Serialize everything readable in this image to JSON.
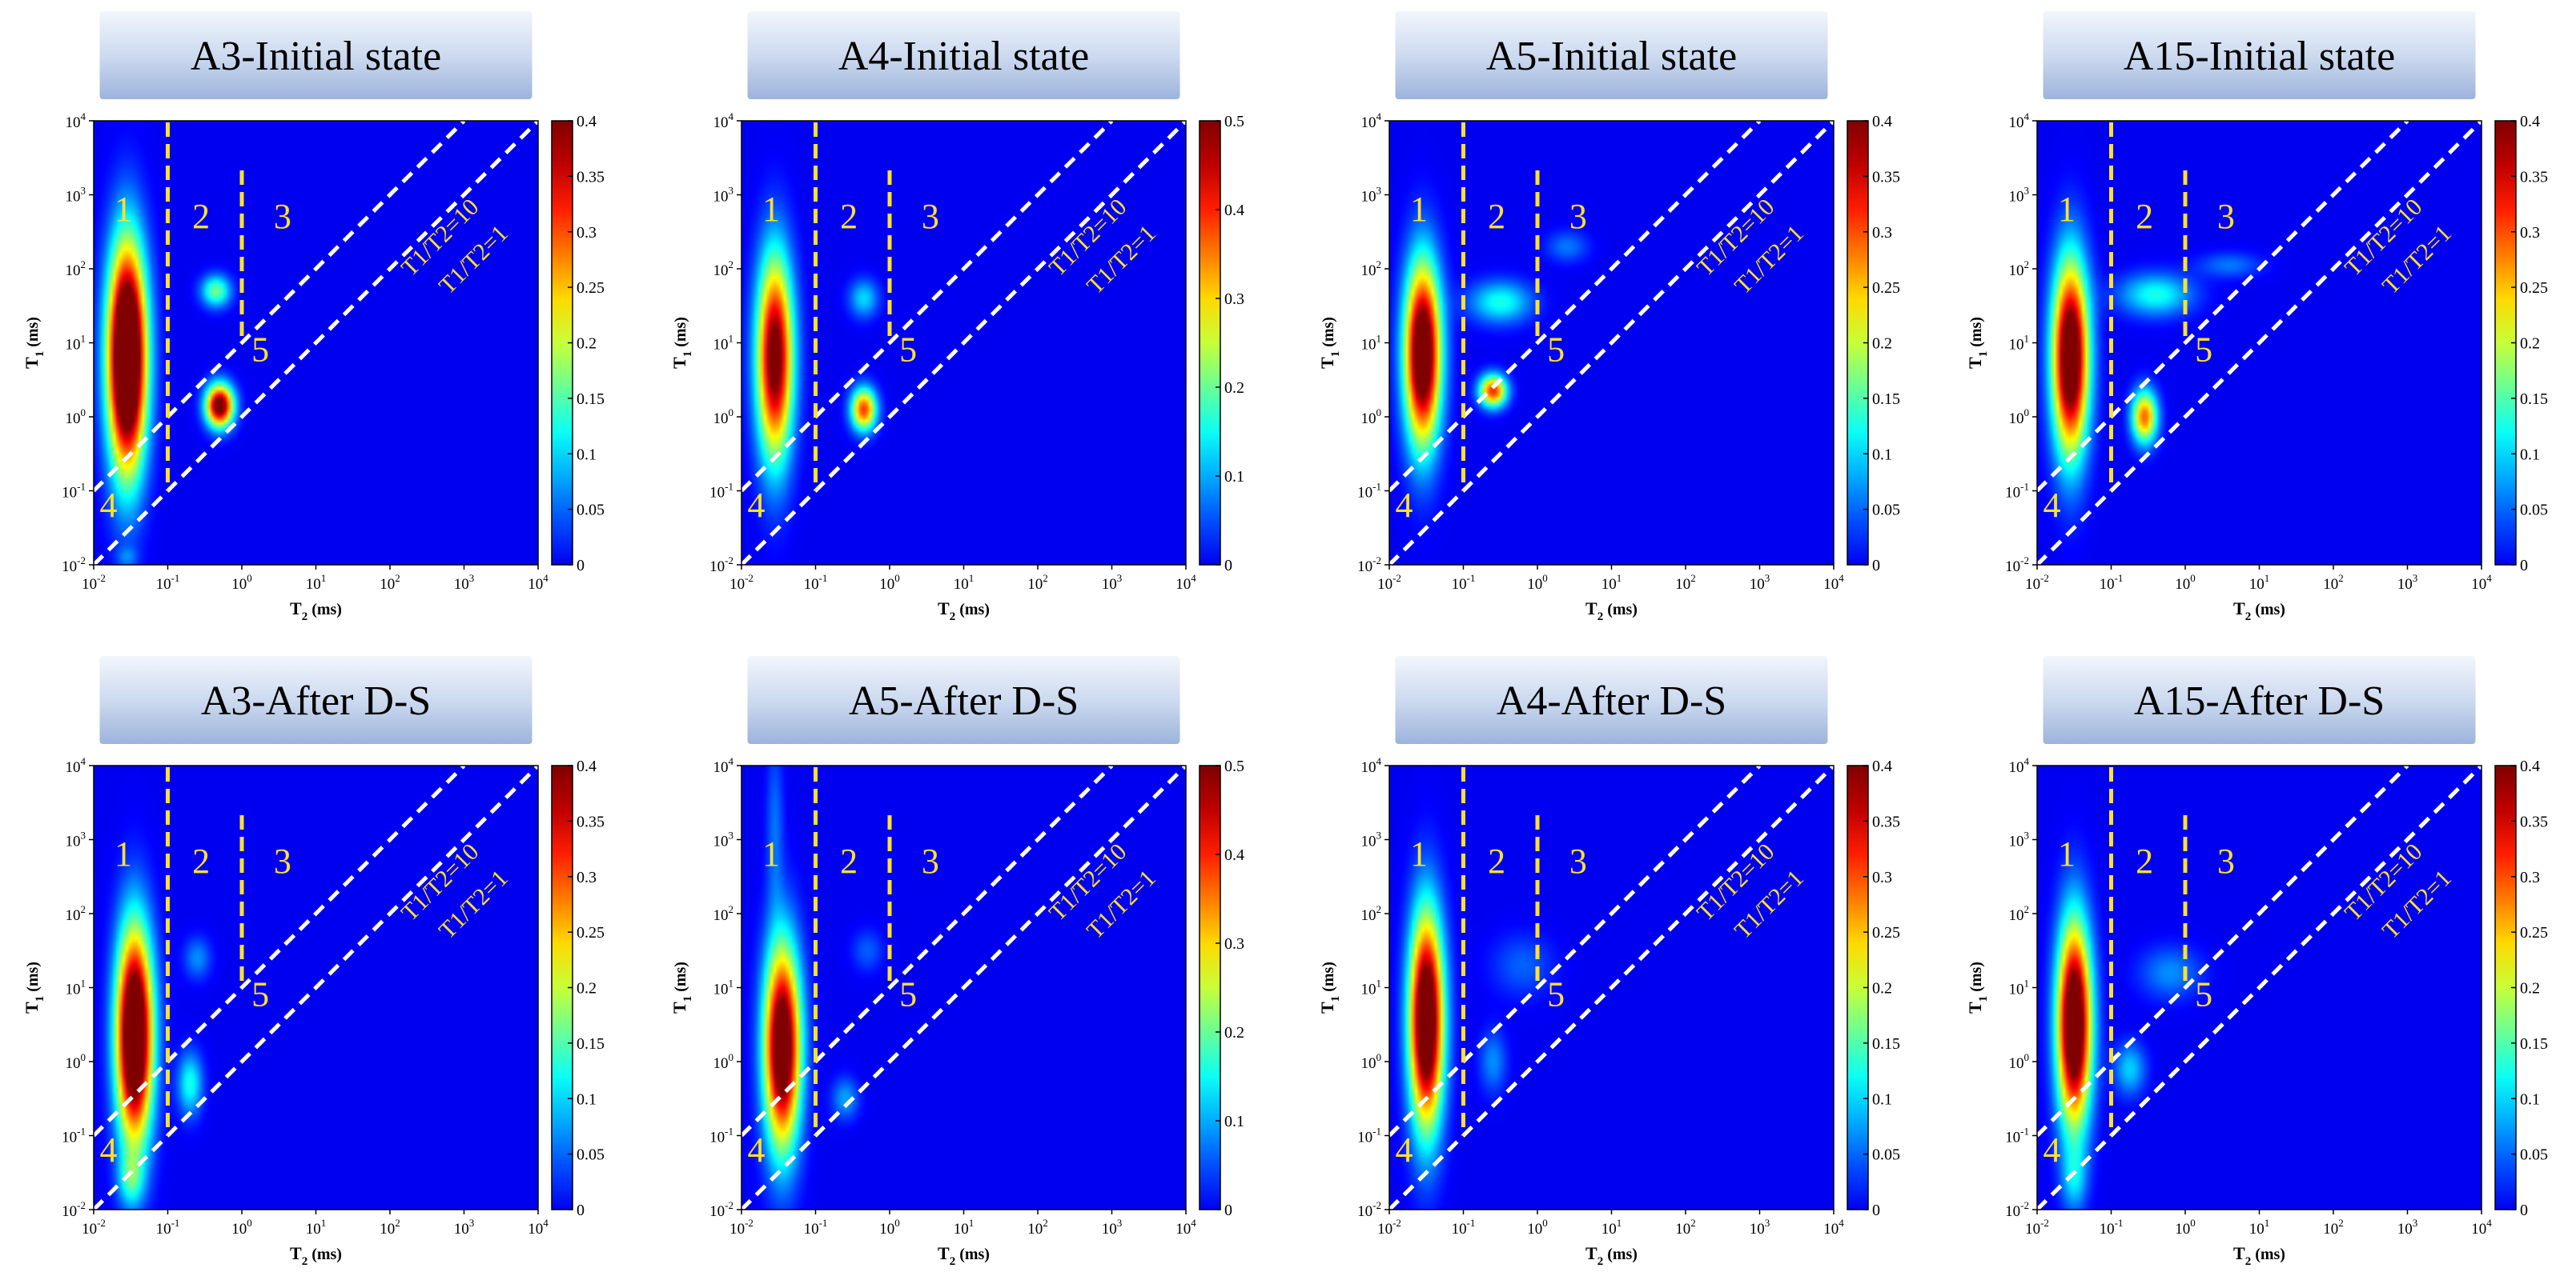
{
  "figure": {
    "panel_count": 8,
    "colormap": "jet"
  },
  "colors": {
    "background": "#ffffff",
    "plot_background": "#00008f",
    "yellow_annotation": "#ffe12b",
    "white_dashed_line": "#ffffff",
    "title_box_top": "#f2f6fc",
    "title_box_bottom": "#9cb3dc"
  },
  "chart_data": [
    {
      "type": "heatmap",
      "title": "A3-Initial state",
      "xlabel_main": "T",
      "xlabel_sub": "2",
      "xlabel_unit": " (ms)",
      "ylabel_main": "T",
      "ylabel_sub": "1",
      "ylabel_unit": " (ms)",
      "x_range_log10": [
        -2,
        4
      ],
      "y_range_log10": [
        -2,
        4
      ],
      "x_ticks": [
        "10-2",
        "10-1",
        "100",
        "101",
        "102",
        "103",
        "104"
      ],
      "y_ticks": [
        "10-2",
        "10-1",
        "100",
        "101",
        "102",
        "103",
        "104"
      ],
      "colorbar": {
        "max": 0.4,
        "ticks": [
          "0",
          "0.05",
          "0.1",
          "0.15",
          "0.2",
          "0.25",
          "0.3",
          "0.35",
          "0.4"
        ]
      },
      "vertical_dividers_log10T2": [
        -1,
        0
      ],
      "region_labels": [
        "1",
        "2",
        "3",
        "4",
        "5"
      ],
      "diagonal_labels": [
        "T1/T2=10",
        "T1/T2=1"
      ],
      "peaks": [
        {
          "log_t2": -1.55,
          "log_t1": 0.8,
          "sigma_t2": 0.18,
          "sigma_t1": 1.05,
          "amp": 0.62
        },
        {
          "log_t2": -0.3,
          "log_t1": 0.15,
          "sigma_t2": 0.13,
          "sigma_t1": 0.2,
          "amp": 0.45
        },
        {
          "log_t2": -0.35,
          "log_t1": 1.7,
          "sigma_t2": 0.14,
          "sigma_t1": 0.15,
          "amp": 0.17
        },
        {
          "log_t2": -1.55,
          "log_t1": -1.9,
          "sigma_t2": 0.1,
          "sigma_t1": 0.1,
          "amp": 0.05
        }
      ]
    },
    {
      "type": "heatmap",
      "title": "A4-Initial state",
      "xlabel_main": "T",
      "xlabel_sub": "2",
      "xlabel_unit": " (ms)",
      "ylabel_main": "T",
      "ylabel_sub": "1",
      "ylabel_unit": " (ms)",
      "x_range_log10": [
        -2,
        4
      ],
      "y_range_log10": [
        -2,
        4
      ],
      "x_ticks": [
        "10-2",
        "10-1",
        "100",
        "101",
        "102",
        "103",
        "104"
      ],
      "y_ticks": [
        "10-2",
        "10-1",
        "100",
        "101",
        "102",
        "103",
        "104"
      ],
      "colorbar": {
        "max": 0.5,
        "ticks": [
          "0",
          "0.1",
          "0.2",
          "0.3",
          "0.4",
          "0.5"
        ]
      },
      "vertical_dividers_log10T2": [
        -1,
        0
      ],
      "region_labels": [
        "1",
        "2",
        "3",
        "4",
        "5"
      ],
      "diagonal_labels": [
        "T1/T2=10",
        "T1/T2=1"
      ],
      "peaks": [
        {
          "log_t2": -1.55,
          "log_t1": 0.8,
          "sigma_t2": 0.17,
          "sigma_t1": 0.95,
          "amp": 0.55
        },
        {
          "log_t2": -0.35,
          "log_t1": 0.1,
          "sigma_t2": 0.12,
          "sigma_t1": 0.2,
          "amp": 0.4
        },
        {
          "log_t2": -0.35,
          "log_t1": 1.6,
          "sigma_t2": 0.14,
          "sigma_t1": 0.18,
          "amp": 0.13
        }
      ]
    },
    {
      "type": "heatmap",
      "title": "A5-Initial state",
      "xlabel_main": "T",
      "xlabel_sub": "2",
      "xlabel_unit": " (ms)",
      "ylabel_main": "T",
      "ylabel_sub": "1",
      "ylabel_unit": " (ms)",
      "x_range_log10": [
        -2,
        4
      ],
      "y_range_log10": [
        -2,
        4
      ],
      "x_ticks": [
        "10-2",
        "10-1",
        "100",
        "101",
        "102",
        "103",
        "104"
      ],
      "y_ticks": [
        "10-2",
        "10-1",
        "100",
        "101",
        "102",
        "103",
        "104"
      ],
      "colorbar": {
        "max": 0.4,
        "ticks": [
          "0",
          "0.05",
          "0.1",
          "0.15",
          "0.2",
          "0.25",
          "0.3",
          "0.35",
          "0.4"
        ]
      },
      "vertical_dividers_log10T2": [
        -1,
        0
      ],
      "region_labels": [
        "1",
        "2",
        "3",
        "4",
        "5"
      ],
      "diagonal_labels": [
        "T1/T2=10",
        "T1/T2=1"
      ],
      "peaks": [
        {
          "log_t2": -1.55,
          "log_t1": 0.85,
          "sigma_t2": 0.17,
          "sigma_t1": 0.85,
          "amp": 0.5
        },
        {
          "log_t2": -0.6,
          "log_t1": 0.35,
          "sigma_t2": 0.13,
          "sigma_t1": 0.15,
          "amp": 0.33
        },
        {
          "log_t2": -0.5,
          "log_t1": 1.55,
          "sigma_t2": 0.3,
          "sigma_t1": 0.2,
          "amp": 0.13
        },
        {
          "log_t2": 0.4,
          "log_t1": 2.3,
          "sigma_t2": 0.2,
          "sigma_t1": 0.15,
          "amp": 0.06
        }
      ]
    },
    {
      "type": "heatmap",
      "title": "A15-Initial state",
      "xlabel_main": "T",
      "xlabel_sub": "2",
      "xlabel_unit": " (ms)",
      "ylabel_main": "T",
      "ylabel_sub": "1",
      "ylabel_unit": " (ms)",
      "x_range_log10": [
        -2,
        4
      ],
      "y_range_log10": [
        -2,
        4
      ],
      "x_ticks": [
        "10-2",
        "10-1",
        "100",
        "101",
        "102",
        "103",
        "104"
      ],
      "y_ticks": [
        "10-2",
        "10-1",
        "100",
        "101",
        "102",
        "103",
        "104"
      ],
      "colorbar": {
        "max": 0.4,
        "ticks": [
          "0",
          "0.05",
          "0.1",
          "0.15",
          "0.2",
          "0.25",
          "0.3",
          "0.35",
          "0.4"
        ]
      },
      "vertical_dividers_log10T2": [
        -1,
        0
      ],
      "region_labels": [
        "1",
        "2",
        "3",
        "4",
        "5"
      ],
      "diagonal_labels": [
        "T1/T2=10",
        "T1/T2=1"
      ],
      "peaks": [
        {
          "log_t2": -1.55,
          "log_t1": 0.8,
          "sigma_t2": 0.17,
          "sigma_t1": 0.9,
          "amp": 0.5
        },
        {
          "log_t2": -0.55,
          "log_t1": 0.0,
          "sigma_t2": 0.12,
          "sigma_t1": 0.25,
          "amp": 0.3
        },
        {
          "log_t2": -0.4,
          "log_t1": 1.65,
          "sigma_t2": 0.35,
          "sigma_t1": 0.2,
          "amp": 0.13
        },
        {
          "log_t2": 0.6,
          "log_t1": 2.05,
          "sigma_t2": 0.3,
          "sigma_t1": 0.12,
          "amp": 0.06
        }
      ]
    },
    {
      "type": "heatmap",
      "title": "A3-After D-S",
      "xlabel_main": "T",
      "xlabel_sub": "2",
      "xlabel_unit": " (ms)",
      "ylabel_main": "T",
      "ylabel_sub": "1",
      "ylabel_unit": " (ms)",
      "x_range_log10": [
        -2,
        4
      ],
      "y_range_log10": [
        -2,
        4
      ],
      "x_ticks": [
        "10-2",
        "10-1",
        "100",
        "101",
        "102",
        "103",
        "104"
      ],
      "y_ticks": [
        "10-2",
        "10-1",
        "100",
        "101",
        "102",
        "103",
        "104"
      ],
      "colorbar": {
        "max": 0.4,
        "ticks": [
          "0",
          "0.05",
          "0.1",
          "0.15",
          "0.2",
          "0.25",
          "0.3",
          "0.35",
          "0.4"
        ]
      },
      "vertical_dividers_log10T2": [
        -1,
        0
      ],
      "region_labels": [
        "1",
        "2",
        "3",
        "4",
        "5"
      ],
      "diagonal_labels": [
        "T1/T2=10",
        "T1/T2=1"
      ],
      "peaks": [
        {
          "log_t2": -1.45,
          "log_t1": 0.35,
          "sigma_t2": 0.17,
          "sigma_t1": 1.0,
          "amp": 0.56
        },
        {
          "log_t2": -0.7,
          "log_t1": -0.3,
          "sigma_t2": 0.12,
          "sigma_t1": 0.3,
          "amp": 0.13
        },
        {
          "log_t2": -0.6,
          "log_t1": 1.4,
          "sigma_t2": 0.13,
          "sigma_t1": 0.2,
          "amp": 0.07
        },
        {
          "log_t2": -1.5,
          "log_t1": -1.6,
          "sigma_t2": 0.12,
          "sigma_t1": 0.25,
          "amp": 0.1
        }
      ]
    },
    {
      "type": "heatmap",
      "title": "A5-After D-S",
      "xlabel_main": "T",
      "xlabel_sub": "2",
      "xlabel_unit": " (ms)",
      "ylabel_main": "T",
      "ylabel_sub": "1",
      "ylabel_unit": " (ms)",
      "x_range_log10": [
        -2,
        4
      ],
      "y_range_log10": [
        -2,
        4
      ],
      "x_ticks": [
        "10-2",
        "10-1",
        "100",
        "101",
        "102",
        "103",
        "104"
      ],
      "y_ticks": [
        "10-2",
        "10-1",
        "100",
        "101",
        "102",
        "103",
        "104"
      ],
      "colorbar": {
        "max": 0.5,
        "ticks": [
          "0",
          "0.1",
          "0.2",
          "0.3",
          "0.4",
          "0.5"
        ]
      },
      "vertical_dividers_log10T2": [
        -1,
        0
      ],
      "region_labels": [
        "1",
        "2",
        "3",
        "4",
        "5"
      ],
      "diagonal_labels": [
        "T1/T2=10",
        "T1/T2=1"
      ],
      "peaks": [
        {
          "log_t2": -1.45,
          "log_t1": 0.2,
          "sigma_t2": 0.17,
          "sigma_t1": 0.95,
          "amp": 0.62
        },
        {
          "log_t2": -1.55,
          "log_t1": 3.2,
          "sigma_t2": 0.08,
          "sigma_t1": 0.8,
          "amp": 0.07
        },
        {
          "log_t2": -0.6,
          "log_t1": -0.5,
          "sigma_t2": 0.13,
          "sigma_t1": 0.2,
          "amp": 0.1
        },
        {
          "log_t2": -0.3,
          "log_t1": 1.5,
          "sigma_t2": 0.15,
          "sigma_t1": 0.2,
          "amp": 0.06
        }
      ]
    },
    {
      "type": "heatmap",
      "title": "A4-After D-S",
      "xlabel_main": "T",
      "xlabel_sub": "2",
      "xlabel_unit": " (ms)",
      "ylabel_main": "T",
      "ylabel_sub": "1",
      "ylabel_unit": " (ms)",
      "x_range_log10": [
        -2,
        4
      ],
      "y_range_log10": [
        -2,
        4
      ],
      "x_ticks": [
        "10-2",
        "10-1",
        "100",
        "101",
        "102",
        "103",
        "104"
      ],
      "y_ticks": [
        "10-2",
        "10-1",
        "100",
        "101",
        "102",
        "103",
        "104"
      ],
      "colorbar": {
        "max": 0.4,
        "ticks": [
          "0",
          "0.05",
          "0.1",
          "0.15",
          "0.2",
          "0.25",
          "0.3",
          "0.35",
          "0.4"
        ]
      },
      "vertical_dividers_log10T2": [
        -1,
        0
      ],
      "region_labels": [
        "1",
        "2",
        "3",
        "4",
        "5"
      ],
      "diagonal_labels": [
        "T1/T2=10",
        "T1/T2=1"
      ],
      "peaks": [
        {
          "log_t2": -1.5,
          "log_t1": 0.55,
          "sigma_t2": 0.16,
          "sigma_t1": 1.0,
          "amp": 0.52
        },
        {
          "log_t2": -0.6,
          "log_t1": 0.0,
          "sigma_t2": 0.13,
          "sigma_t1": 0.3,
          "amp": 0.07
        },
        {
          "log_t2": -0.2,
          "log_t1": 1.3,
          "sigma_t2": 0.3,
          "sigma_t1": 0.3,
          "amp": 0.05
        }
      ]
    },
    {
      "type": "heatmap",
      "title": "A15-After D-S",
      "xlabel_main": "T",
      "xlabel_sub": "2",
      "xlabel_unit": " (ms)",
      "ylabel_main": "T",
      "ylabel_sub": "1",
      "ylabel_unit": " (ms)",
      "x_range_log10": [
        -2,
        4
      ],
      "y_range_log10": [
        -2,
        4
      ],
      "x_ticks": [
        "10-2",
        "10-1",
        "100",
        "101",
        "102",
        "103",
        "104"
      ],
      "y_ticks": [
        "10-2",
        "10-1",
        "100",
        "101",
        "102",
        "103",
        "104"
      ],
      "colorbar": {
        "max": 0.4,
        "ticks": [
          "0",
          "0.05",
          "0.1",
          "0.15",
          "0.2",
          "0.25",
          "0.3",
          "0.35",
          "0.4"
        ]
      },
      "vertical_dividers_log10T2": [
        -1,
        0
      ],
      "region_labels": [
        "1",
        "2",
        "3",
        "4",
        "5"
      ],
      "diagonal_labels": [
        "T1/T2=10",
        "T1/T2=1"
      ],
      "peaks": [
        {
          "log_t2": -1.5,
          "log_t1": 0.5,
          "sigma_t2": 0.16,
          "sigma_t1": 0.95,
          "amp": 0.52
        },
        {
          "log_t2": -0.75,
          "log_t1": -0.1,
          "sigma_t2": 0.15,
          "sigma_t1": 0.25,
          "amp": 0.1
        },
        {
          "log_t2": -0.2,
          "log_t1": 1.2,
          "sigma_t2": 0.3,
          "sigma_t1": 0.25,
          "amp": 0.07
        },
        {
          "log_t2": -1.5,
          "log_t1": -1.6,
          "sigma_t2": 0.12,
          "sigma_t1": 0.3,
          "amp": 0.08
        }
      ]
    }
  ]
}
